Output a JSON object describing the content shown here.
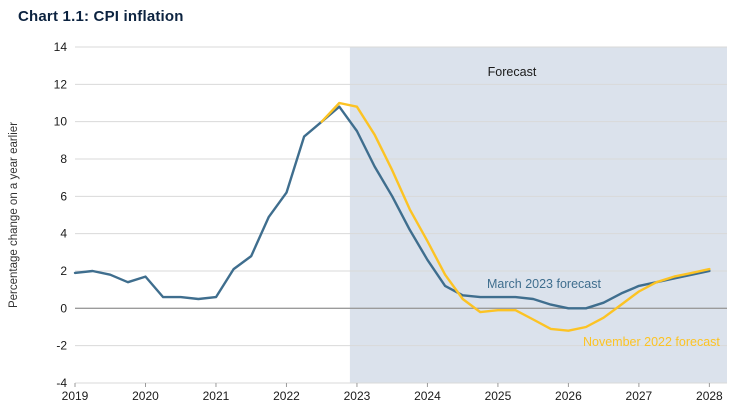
{
  "title": "Chart 1.1: CPI inflation",
  "colors": {
    "title": "#0c2340",
    "forecast_shade": "#dbe2ec",
    "gridline": "#d9d9d9",
    "zero_line": "#9b9b9b",
    "axis_text": "#1a1a1a"
  },
  "labels": {
    "forecast_region": "Forecast"
  },
  "chart_data": {
    "type": "line",
    "title": "Chart 1.1: CPI inflation",
    "xlabel": "",
    "ylabel": "Percentage change on a year earlier",
    "ylim": [
      -4,
      14
    ],
    "xlim": [
      2019,
      2028.25
    ],
    "yticks": [
      -4,
      -2,
      0,
      2,
      4,
      6,
      8,
      10,
      12,
      14
    ],
    "xticks": [
      2019,
      2020,
      2021,
      2022,
      2023,
      2024,
      2025,
      2026,
      2027,
      2028
    ],
    "grid": "horizontal",
    "legend_position": "inline-annotations",
    "forecast_region": {
      "label": "Forecast",
      "x_start": 2022.9,
      "x_end": 2028.25
    },
    "series": [
      {
        "name": "March 2023 forecast",
        "color": "#3f6e8e",
        "x": [
          2019,
          2019.25,
          2019.5,
          2019.75,
          2020,
          2020.25,
          2020.5,
          2020.75,
          2021,
          2021.25,
          2021.5,
          2021.75,
          2022,
          2022.25,
          2022.5,
          2022.75,
          2023,
          2023.25,
          2023.5,
          2023.75,
          2024,
          2024.25,
          2024.5,
          2024.75,
          2025,
          2025.25,
          2025.5,
          2025.75,
          2026,
          2026.25,
          2026.5,
          2026.75,
          2027,
          2027.25,
          2027.5,
          2027.75,
          2028
        ],
        "y": [
          1.9,
          2.0,
          1.8,
          1.4,
          1.7,
          0.6,
          0.6,
          0.5,
          0.6,
          2.1,
          2.8,
          4.9,
          6.2,
          9.2,
          10.0,
          10.8,
          9.5,
          7.6,
          6.0,
          4.2,
          2.6,
          1.2,
          0.7,
          0.6,
          0.6,
          0.6,
          0.5,
          0.2,
          0.0,
          0.0,
          0.3,
          0.8,
          1.2,
          1.4,
          1.6,
          1.8,
          2.0
        ]
      },
      {
        "name": "November 2022 forecast",
        "color": "#fcc324",
        "x": [
          2022.5,
          2022.75,
          2023,
          2023.25,
          2023.5,
          2023.75,
          2024,
          2024.25,
          2024.5,
          2024.75,
          2025,
          2025.25,
          2025.5,
          2025.75,
          2026,
          2026.25,
          2026.5,
          2026.75,
          2027,
          2027.25,
          2027.5,
          2027.75,
          2028
        ],
        "y": [
          10.0,
          11.0,
          10.8,
          9.3,
          7.4,
          5.3,
          3.6,
          1.8,
          0.5,
          -0.2,
          -0.1,
          -0.1,
          -0.6,
          -1.1,
          -1.2,
          -1.0,
          -0.5,
          0.2,
          0.9,
          1.4,
          1.7,
          1.9,
          2.1
        ]
      }
    ]
  }
}
